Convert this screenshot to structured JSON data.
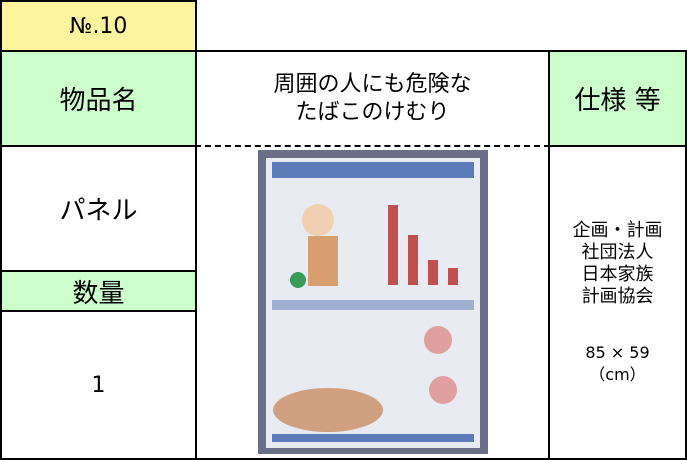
{
  "header": {
    "number": "№.10",
    "item_label": "物品名",
    "item_name": [
      "周囲の人にも危険な",
      "たばこのけむり"
    ],
    "spec_label": "仕様 等"
  },
  "body": {
    "item": "パネル",
    "quantity_label": "数量",
    "quantity": "1",
    "spec": [
      "企画・計画",
      "社団法人",
      "日本家族",
      "計画協会"
    ],
    "size": [
      "85 × 59",
      "（cm）"
    ]
  }
}
